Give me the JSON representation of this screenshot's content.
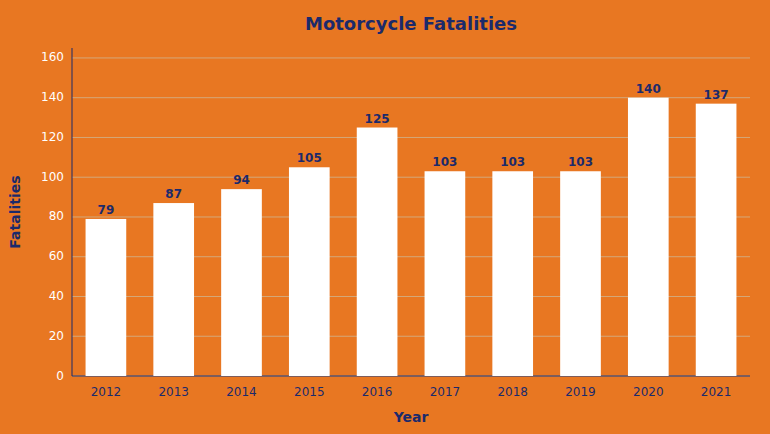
{
  "chart_data": {
    "type": "bar",
    "title": "Motorcycle Fatalities",
    "x_label": "Year",
    "y_label": "Fatalities",
    "categories": [
      "2012",
      "2013",
      "2014",
      "2015",
      "2016",
      "2017",
      "2018",
      "2019",
      "2020",
      "2021"
    ],
    "values": [
      79,
      87,
      94,
      105,
      125,
      103,
      103,
      103,
      140,
      137
    ],
    "color": "#ffffff",
    "ylim": [
      0,
      165
    ],
    "yticks": [
      0,
      20,
      40,
      60,
      80,
      100,
      120,
      140,
      160
    ],
    "grid": true,
    "data_labels": true
  }
}
